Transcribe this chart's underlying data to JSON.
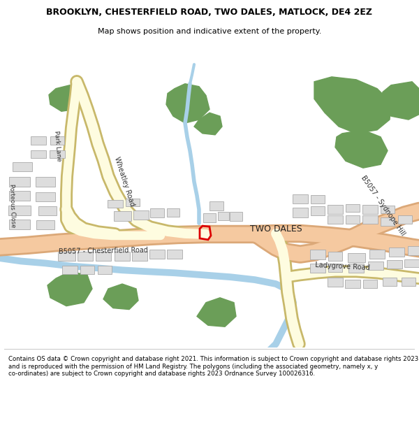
{
  "title": "BROOKLYN, CHESTERFIELD ROAD, TWO DALES, MATLOCK, DE4 2EZ",
  "subtitle": "Map shows position and indicative extent of the property.",
  "footer": "Contains OS data © Crown copyright and database right 2021. This information is subject to Crown copyright and database rights 2023 and is reproduced with the permission of HM Land Registry. The polygons (including the associated geometry, namely x, y co-ordinates) are subject to Crown copyright and database rights 2023 Ordnance Survey 100026316.",
  "bg_color": "#ffffff",
  "map_bg": "#f5f5f0",
  "road_main_color": "#f5c9a0",
  "road_main_edge": "#dba878",
  "road_minor_color": "#fefce0",
  "road_minor_edge": "#c8b86a",
  "green_color": "#6b9e58",
  "blue_color": "#a8d0e8",
  "building_color": "#dddddd",
  "building_edge": "#aaaaaa",
  "highlight_color": "#dd0000",
  "label_two_dales": "TWO DALES",
  "label_park_lane": "Park Lane",
  "label_porteous_close": "Porteous Close",
  "label_wheatley_road": "Wheatley Road",
  "label_b5057_chester": "B5057 - Chesterfield Road",
  "label_b5057_sydnope": "B5057 - Sydnope Hill",
  "label_ladygrove": "Ladygrove Road"
}
